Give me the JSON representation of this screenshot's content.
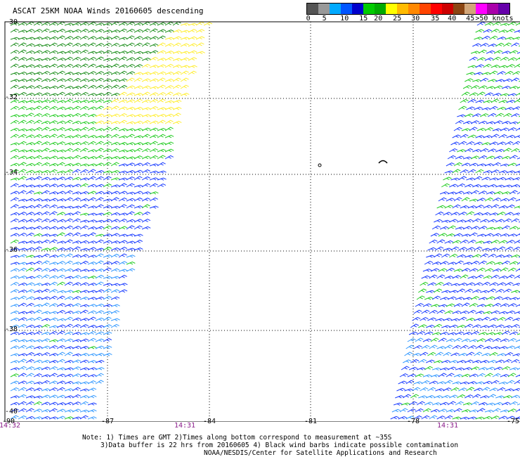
{
  "title": "ASCAT 25KM NOAA Winds 20160605 descending",
  "legend": {
    "colors": [
      "#555555",
      "#999999",
      "#00aaff",
      "#0055ff",
      "#0000cc",
      "#00cc00",
      "#00aa00",
      "#ffff00",
      "#ffbb00",
      "#ff8800",
      "#ff4400",
      "#ff0000",
      "#cc0000",
      "#8b4513",
      "#d2a679",
      "#ff00ff",
      "#aa00aa",
      "#6600aa"
    ],
    "labels": [
      "0",
      "5",
      "10",
      "15",
      "20",
      "25",
      "30",
      "35",
      "40",
      "45",
      ">50 knots"
    ]
  },
  "map": {
    "lat_labels": [
      "-30",
      "-32",
      "-34",
      "-36",
      "-38",
      "-40"
    ],
    "lon_labels": [
      "-90",
      "-87",
      "-84",
      "-81",
      "-78",
      "-75"
    ]
  },
  "times": {
    "left": "14:32",
    "middle": "14:31",
    "right": "14:31"
  },
  "notes": {
    "line1": "Note: 1) Times are GMT 2)Times along bottom correspond to measurement at ~35S",
    "line2": "3)Data buffer is 22 hrs from 20160605 4) Black wind barbs indicate possible contamination",
    "line3": "NOAA/NESDIS/Center for Satellite Applications and Research"
  }
}
